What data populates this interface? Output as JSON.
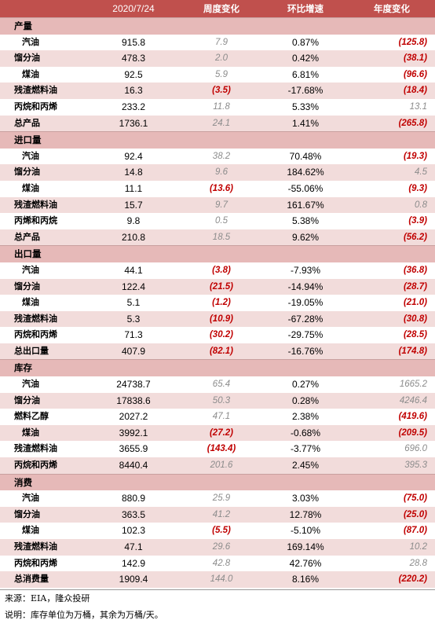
{
  "header": {
    "c0": "",
    "date": "2020/7/24",
    "weekly": "周度变化",
    "mom": "环比增速",
    "annual": "年度变化"
  },
  "sections": [
    {
      "title": "产量",
      "rows": [
        {
          "label": "汽油",
          "value": "915.8",
          "weekly": "7.9",
          "mom": "0.87%",
          "annual": "(125.8)"
        },
        {
          "label": "馏分油",
          "value": "478.3",
          "weekly": "2.0",
          "mom": "0.42%",
          "annual": "(38.1)"
        },
        {
          "label": "煤油",
          "value": "92.5",
          "weekly": "5.9",
          "mom": "6.81%",
          "annual": "(96.6)"
        },
        {
          "label": "残渣燃料油",
          "value": "16.3",
          "weekly": "(3.5)",
          "mom": "-17.68%",
          "annual": "(18.4)"
        },
        {
          "label": "丙烷和丙烯",
          "value": "233.2",
          "weekly": "11.8",
          "mom": "5.33%",
          "annual": "13.1"
        },
        {
          "label": "总产品",
          "value": "1736.1",
          "weekly": "24.1",
          "mom": "1.41%",
          "annual": "(265.8)"
        }
      ]
    },
    {
      "title": "进口量",
      "rows": [
        {
          "label": "汽油",
          "value": "92.4",
          "weekly": "38.2",
          "mom": "70.48%",
          "annual": "(19.3)"
        },
        {
          "label": "馏分油",
          "value": "14.8",
          "weekly": "9.6",
          "mom": "184.62%",
          "annual": "4.5"
        },
        {
          "label": "煤油",
          "value": "11.1",
          "weekly": "(13.6)",
          "mom": "-55.06%",
          "annual": "(9.3)"
        },
        {
          "label": "残渣燃料油",
          "value": "15.7",
          "weekly": "9.7",
          "mom": "161.67%",
          "annual": "0.8"
        },
        {
          "label": "丙烯和丙烷",
          "value": "9.8",
          "weekly": "0.5",
          "mom": "5.38%",
          "annual": "(3.9)"
        },
        {
          "label": "总产品",
          "value": "210.8",
          "weekly": "18.5",
          "mom": "9.62%",
          "annual": "(56.2)"
        }
      ]
    },
    {
      "title": "出口量",
      "rows": [
        {
          "label": "汽油",
          "value": "44.1",
          "weekly": "(3.8)",
          "mom": "-7.93%",
          "annual": "(36.8)"
        },
        {
          "label": "馏分油",
          "value": "122.4",
          "weekly": "(21.5)",
          "mom": "-14.94%",
          "annual": "(28.7)"
        },
        {
          "label": "煤油",
          "value": "5.1",
          "weekly": "(1.2)",
          "mom": "-19.05%",
          "annual": "(21.0)"
        },
        {
          "label": "残渣燃料油",
          "value": "5.3",
          "weekly": "(10.9)",
          "mom": "-67.28%",
          "annual": "(30.8)"
        },
        {
          "label": "丙烷和丙烯",
          "value": "71.3",
          "weekly": "(30.2)",
          "mom": "-29.75%",
          "annual": "(28.5)"
        },
        {
          "label": "总出口量",
          "value": "407.9",
          "weekly": "(82.1)",
          "mom": "-16.76%",
          "annual": "(174.8)"
        }
      ]
    },
    {
      "title": "库存",
      "rows": [
        {
          "label": "汽油",
          "value": "24738.7",
          "weekly": "65.4",
          "mom": "0.27%",
          "annual": "1665.2"
        },
        {
          "label": "馏分油",
          "value": "17838.6",
          "weekly": "50.3",
          "mom": "0.28%",
          "annual": "4246.4"
        },
        {
          "label": "燃料乙醇",
          "value": "2027.2",
          "weekly": "47.1",
          "mom": "2.38%",
          "annual": "(419.6)"
        },
        {
          "label": "煤油",
          "value": "3992.1",
          "weekly": "(27.2)",
          "mom": "-0.68%",
          "annual": "(209.5)"
        },
        {
          "label": "残渣燃料油",
          "value": "3655.9",
          "weekly": "(143.4)",
          "mom": "-3.77%",
          "annual": "696.0"
        },
        {
          "label": "丙烷和丙烯",
          "value": "8440.4",
          "weekly": "201.6",
          "mom": "2.45%",
          "annual": "395.3"
        }
      ]
    },
    {
      "title": "消费",
      "rows": [
        {
          "label": "汽油",
          "value": "880.9",
          "weekly": "25.9",
          "mom": "3.03%",
          "annual": "(75.0)"
        },
        {
          "label": "馏分油",
          "value": "363.5",
          "weekly": "41.2",
          "mom": "12.78%",
          "annual": "(25.0)"
        },
        {
          "label": "煤油",
          "value": "102.3",
          "weekly": "(5.5)",
          "mom": "-5.10%",
          "annual": "(87.0)"
        },
        {
          "label": "残渣燃料油",
          "value": "47.1",
          "weekly": "29.6",
          "mom": "169.14%",
          "annual": "10.2"
        },
        {
          "label": "丙烷和丙烯",
          "value": "142.9",
          "weekly": "42.8",
          "mom": "42.76%",
          "annual": "28.8"
        },
        {
          "label": "总消费量",
          "value": "1909.4",
          "weekly": "144.0",
          "mom": "8.16%",
          "annual": "(220.2)"
        }
      ]
    }
  ],
  "footer": {
    "source": "来源：EIA，隆众投研",
    "note": "说明：库存单位为万桶，其余为万桶/天。"
  },
  "colors": {
    "header_bg": "#c0504d",
    "section_bg": "#e6b9b8",
    "alt_row_bg": "#f2dcdb",
    "negative": "#c00000",
    "positive_change": "#8c8c8c"
  }
}
